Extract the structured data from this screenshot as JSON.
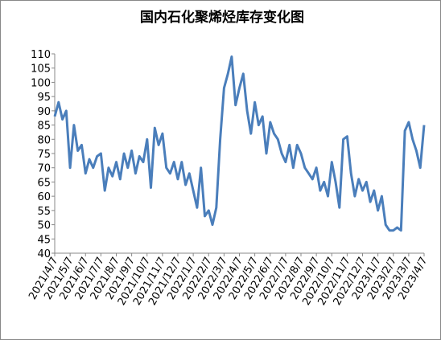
{
  "chart_data": {
    "type": "line",
    "title": "国内石化聚烯烃库存变化图",
    "categories": [
      "2021/4/7",
      null,
      null,
      null,
      "2021/5/7",
      null,
      null,
      null,
      "2021/6/7",
      null,
      null,
      null,
      "2021/7/7",
      null,
      null,
      null,
      "2021/8/7",
      null,
      null,
      null,
      "2021/9/7",
      null,
      null,
      null,
      "2021/10/7",
      null,
      null,
      null,
      "2021/11/7",
      null,
      null,
      null,
      "2021/12/7",
      null,
      null,
      null,
      "2022/1/7",
      null,
      null,
      null,
      "2022/2/7",
      null,
      null,
      null,
      "2022/3/7",
      null,
      null,
      null,
      "2022/4/7",
      null,
      null,
      null,
      "2022/5/7",
      null,
      null,
      null,
      "2022/6/7",
      null,
      null,
      null,
      "2022/7/7",
      null,
      null,
      null,
      "2022/8/7",
      null,
      null,
      null,
      "2022/9/7",
      null,
      null,
      null,
      "2022/10/7",
      null,
      null,
      null,
      "2022/11/7",
      null,
      null,
      null,
      "2022/12/7",
      null,
      null,
      null,
      "2023/1/7",
      null,
      null,
      null,
      "2023/2/7",
      null,
      null,
      null,
      "2023/3/7",
      null,
      null,
      null,
      "2023/4/7"
    ],
    "series": [
      {
        "color": "#4a7ebb",
        "values": [
          88,
          93,
          87,
          90,
          70,
          85,
          76,
          78,
          68,
          73,
          70,
          74,
          75,
          62,
          70,
          67,
          72,
          66,
          75,
          70,
          76,
          68,
          74,
          72,
          80,
          63,
          84,
          78,
          82,
          70,
          68,
          72,
          66,
          72,
          64,
          68,
          62,
          56,
          70,
          53,
          55,
          50,
          56,
          80,
          98,
          103,
          109,
          92,
          98,
          103,
          90,
          82,
          93,
          85,
          88,
          75,
          86,
          82,
          80,
          75,
          72,
          78,
          70,
          78,
          75,
          70,
          68,
          66,
          70,
          62,
          65,
          60,
          72,
          65,
          56,
          80,
          81,
          68,
          60,
          66,
          62,
          65,
          58,
          62,
          55,
          60,
          50,
          48,
          48,
          49,
          48,
          83,
          86,
          80,
          76,
          70,
          85
        ]
      }
    ],
    "ylim": [
      40,
      110
    ],
    "yticks": [
      40,
      45,
      50,
      55,
      60,
      65,
      70,
      75,
      80,
      85,
      90,
      95,
      100,
      105,
      110
    ]
  }
}
